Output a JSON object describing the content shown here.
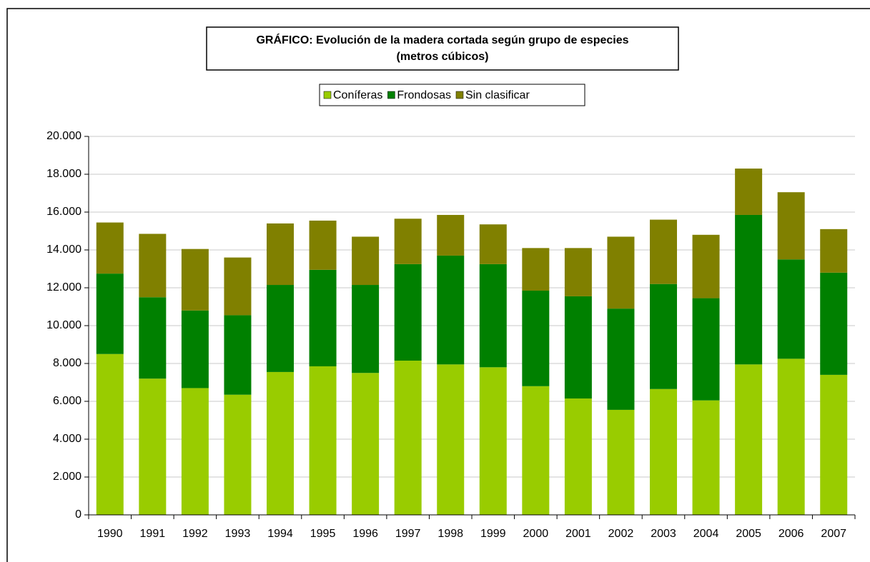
{
  "chart_data": {
    "type": "stacked_bar",
    "title": [
      "GRÁFICO: Evolución de la  madera cortada según grupo de especies",
      "(metros cúbicos)"
    ],
    "categories": [
      "1990",
      "1991",
      "1992",
      "1993",
      "1994",
      "1995",
      "1996",
      "1997",
      "1998",
      "1999",
      "2000",
      "2001",
      "2002",
      "2003",
      "2004",
      "2005",
      "2006",
      "2007"
    ],
    "series": [
      {
        "name": "Coníferas",
        "color": "#99cc00",
        "values": [
          8500,
          7200,
          6700,
          6350,
          7550,
          7850,
          7500,
          8150,
          7950,
          7800,
          6800,
          6150,
          5550,
          6650,
          6050,
          7950,
          8250,
          7400
        ]
      },
      {
        "name": "Frondosas",
        "color": "#008000",
        "values": [
          4250,
          4300,
          4100,
          4200,
          4600,
          5100,
          4650,
          5100,
          5750,
          5450,
          5050,
          5400,
          5350,
          5550,
          5400,
          7900,
          5250,
          5400
        ]
      },
      {
        "name": "Sin clasificar",
        "color": "#808000",
        "values": [
          2700,
          3350,
          3250,
          3050,
          3250,
          2600,
          2550,
          2400,
          2150,
          2100,
          2250,
          2550,
          3800,
          3400,
          3350,
          2450,
          3550,
          2300
        ]
      }
    ],
    "ylim": [
      0,
      20000
    ],
    "yticks": [
      0,
      {
        "value": 2000,
        "label": "2.000"
      },
      {
        "value": 4000,
        "label": "4.000"
      },
      {
        "value": 6000,
        "label": "6.000"
      },
      {
        "value": 8000,
        "label": "8.000"
      },
      {
        "value": 10000,
        "label": "10.000"
      },
      {
        "value": 12000,
        "label": "12.000"
      },
      {
        "value": 14000,
        "label": "14.000"
      },
      {
        "value": 16000,
        "label": "16.000"
      },
      {
        "value": 18000,
        "label": "18.000"
      },
      {
        "value": 20000,
        "label": "20.000"
      }
    ],
    "grid": true,
    "legend": "top"
  }
}
